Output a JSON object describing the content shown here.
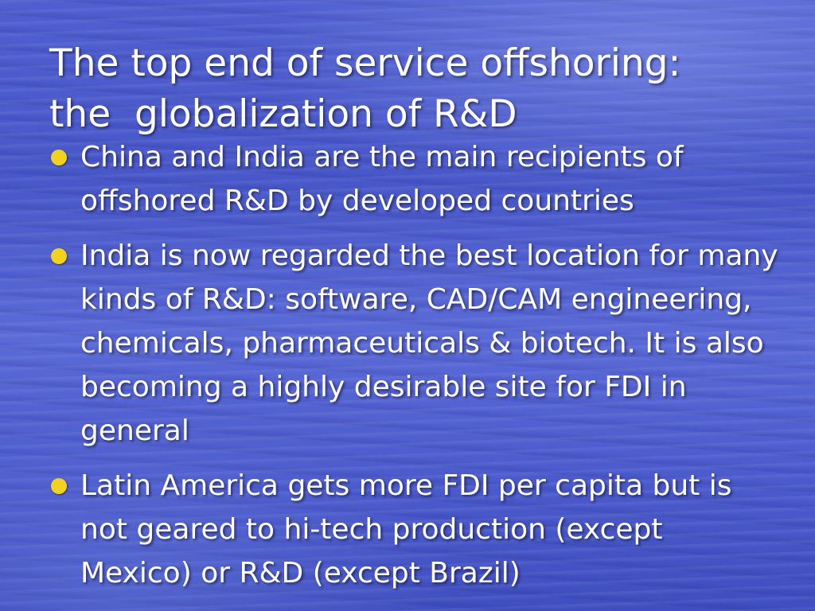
{
  "slide": {
    "title": "The top end of service offshoring:\nthe  globalization of R&D",
    "bullet_color": "#f2d21e",
    "text_color": "#ffffff",
    "bullets": [
      "China and India are the main recipients of offshored R&D by developed countries",
      "India is now regarded the best location for many kinds of R&D: software, CAD/CAM engineering, chemicals, pharmaceuticals & biotech. It is also becoming a highly desirable site for FDI in general",
      "Latin America gets more FDI per capita but is not geared to hi-tech production (except Mexico) or R&D (except Brazil)"
    ]
  }
}
